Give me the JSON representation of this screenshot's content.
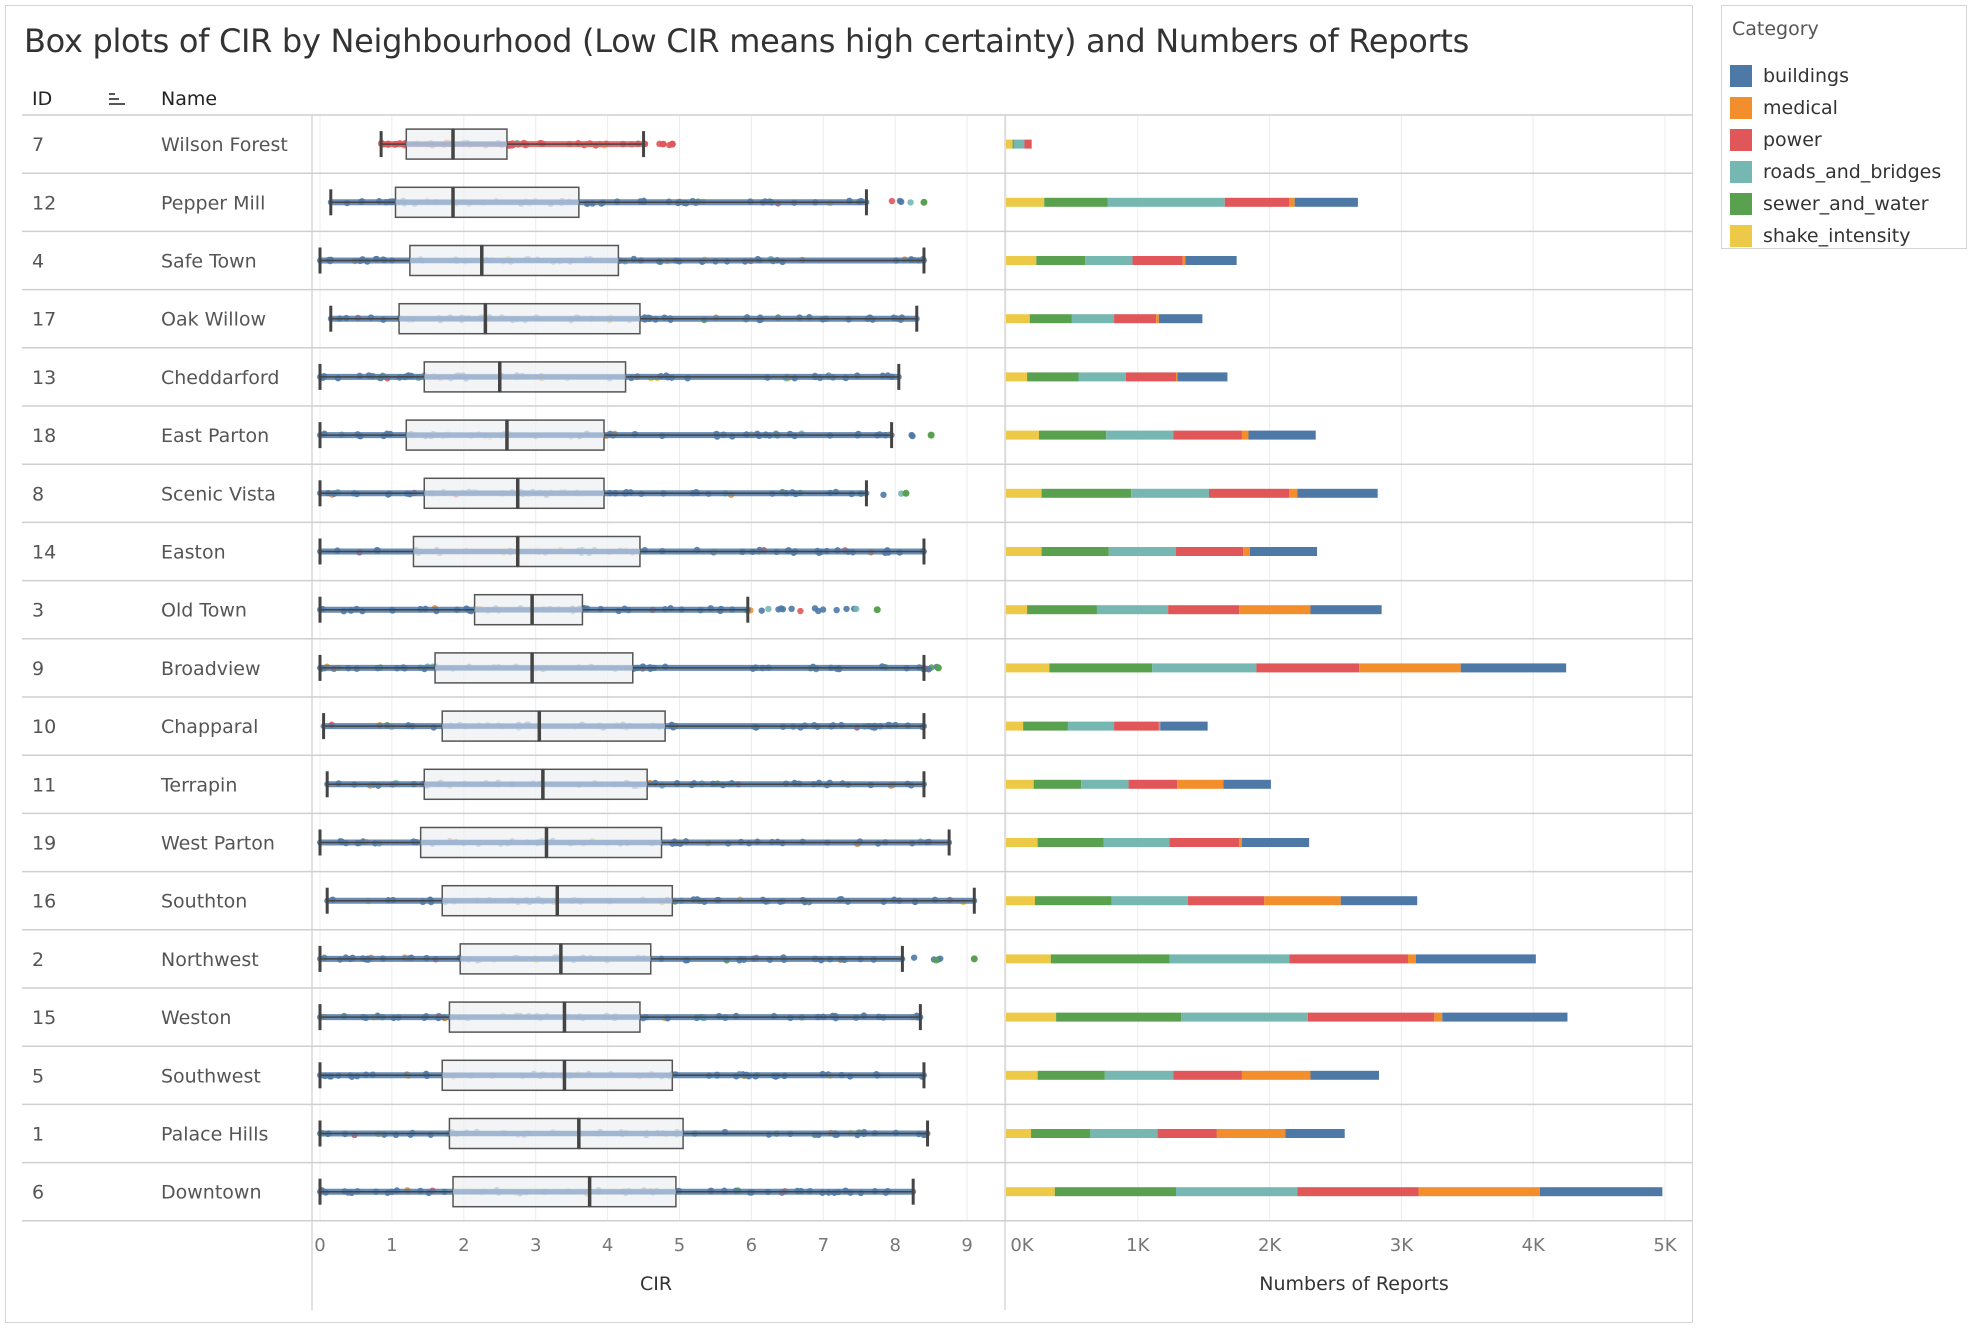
{
  "title": "Box plots of CIR by Neighbourhood (Low CIR means high certainty) and Numbers of Reports",
  "columns": {
    "id": "ID",
    "sort_icon": "sort-descending-icon",
    "name": "Name"
  },
  "legend": {
    "title": "Category",
    "items": [
      {
        "label": "buildings",
        "color": "#4e79a7"
      },
      {
        "label": "medical",
        "color": "#f28e2b"
      },
      {
        "label": "power",
        "color": "#e15759"
      },
      {
        "label": "roads_and_bridges",
        "color": "#76b7b2"
      },
      {
        "label": "sewer_and_water",
        "color": "#59a14f"
      },
      {
        "label": "shake_intensity",
        "color": "#edc948"
      }
    ]
  },
  "chart_data": [
    {
      "type": "box",
      "xlabel": "CIR",
      "xlim": [
        0,
        9.5
      ],
      "xticks": [
        "0",
        "1",
        "2",
        "3",
        "4",
        "5",
        "6",
        "7",
        "8",
        "9"
      ],
      "rows": [
        {
          "id": "7",
          "name": "Wilson Forest",
          "whisker_low": 0.85,
          "q1": 1.2,
          "median": 1.85,
          "q3": 2.6,
          "whisker_high": 4.5,
          "outlier_max": 4.9,
          "dominant": "power"
        },
        {
          "id": "12",
          "name": "Pepper Mill",
          "whisker_low": 0.15,
          "q1": 1.05,
          "median": 1.85,
          "q3": 3.6,
          "whisker_high": 7.6,
          "outlier_max": 8.4,
          "dominant": "buildings"
        },
        {
          "id": "4",
          "name": "Safe Town",
          "whisker_low": 0.0,
          "q1": 1.25,
          "median": 2.25,
          "q3": 4.15,
          "whisker_high": 8.4,
          "outlier_max": 8.4,
          "dominant": "buildings"
        },
        {
          "id": "17",
          "name": "Oak Willow",
          "whisker_low": 0.15,
          "q1": 1.1,
          "median": 2.3,
          "q3": 4.45,
          "whisker_high": 8.3,
          "outlier_max": 8.3,
          "dominant": "buildings"
        },
        {
          "id": "13",
          "name": "Cheddarford",
          "whisker_low": 0.0,
          "q1": 1.45,
          "median": 2.5,
          "q3": 4.25,
          "whisker_high": 8.05,
          "outlier_max": 8.05,
          "dominant": "buildings"
        },
        {
          "id": "18",
          "name": "East Parton",
          "whisker_low": 0.0,
          "q1": 1.2,
          "median": 2.6,
          "q3": 3.95,
          "whisker_high": 7.95,
          "outlier_max": 8.5,
          "dominant": "buildings"
        },
        {
          "id": "8",
          "name": "Scenic Vista",
          "whisker_low": 0.0,
          "q1": 1.45,
          "median": 2.75,
          "q3": 3.95,
          "whisker_high": 7.6,
          "outlier_max": 8.15,
          "dominant": "buildings"
        },
        {
          "id": "14",
          "name": "Easton",
          "whisker_low": 0.0,
          "q1": 1.3,
          "median": 2.75,
          "q3": 4.45,
          "whisker_high": 8.4,
          "outlier_max": 8.4,
          "dominant": "buildings"
        },
        {
          "id": "3",
          "name": "Old Town",
          "whisker_low": 0.0,
          "q1": 2.15,
          "median": 2.95,
          "q3": 3.65,
          "whisker_high": 5.95,
          "outlier_max": 7.75,
          "dominant": "buildings"
        },
        {
          "id": "9",
          "name": "Broadview",
          "whisker_low": 0.0,
          "q1": 1.6,
          "median": 2.95,
          "q3": 4.35,
          "whisker_high": 8.4,
          "outlier_max": 8.6,
          "dominant": "buildings"
        },
        {
          "id": "10",
          "name": "Chapparal",
          "whisker_low": 0.05,
          "q1": 1.7,
          "median": 3.05,
          "q3": 4.8,
          "whisker_high": 8.4,
          "outlier_max": 8.4,
          "dominant": "buildings"
        },
        {
          "id": "11",
          "name": "Terrapin",
          "whisker_low": 0.1,
          "q1": 1.45,
          "median": 3.1,
          "q3": 4.55,
          "whisker_high": 8.4,
          "outlier_max": 8.4,
          "dominant": "buildings"
        },
        {
          "id": "19",
          "name": "West Parton",
          "whisker_low": 0.0,
          "q1": 1.4,
          "median": 3.15,
          "q3": 4.75,
          "whisker_high": 8.75,
          "outlier_max": 8.75,
          "dominant": "buildings"
        },
        {
          "id": "16",
          "name": "Southton",
          "whisker_low": 0.1,
          "q1": 1.7,
          "median": 3.3,
          "q3": 4.9,
          "whisker_high": 9.1,
          "outlier_max": 9.1,
          "dominant": "buildings"
        },
        {
          "id": "2",
          "name": "Northwest",
          "whisker_low": 0.0,
          "q1": 1.95,
          "median": 3.35,
          "q3": 4.6,
          "whisker_high": 8.1,
          "outlier_max": 9.1,
          "dominant": "buildings"
        },
        {
          "id": "15",
          "name": "Weston",
          "whisker_low": 0.0,
          "q1": 1.8,
          "median": 3.4,
          "q3": 4.45,
          "whisker_high": 8.35,
          "outlier_max": 8.35,
          "dominant": "buildings"
        },
        {
          "id": "5",
          "name": "Southwest",
          "whisker_low": 0.0,
          "q1": 1.7,
          "median": 3.4,
          "q3": 4.9,
          "whisker_high": 8.4,
          "outlier_max": 8.4,
          "dominant": "buildings"
        },
        {
          "id": "1",
          "name": "Palace Hills",
          "whisker_low": 0.0,
          "q1": 1.8,
          "median": 3.6,
          "q3": 5.05,
          "whisker_high": 8.45,
          "outlier_max": 8.45,
          "dominant": "buildings"
        },
        {
          "id": "6",
          "name": "Downtown",
          "whisker_low": 0.0,
          "q1": 1.85,
          "median": 3.75,
          "q3": 4.95,
          "whisker_high": 8.25,
          "outlier_max": 8.25,
          "dominant": "buildings"
        }
      ]
    },
    {
      "type": "bar",
      "stacked": true,
      "orientation": "horizontal",
      "xlabel": "Numbers of Reports",
      "xlim": [
        0,
        5000
      ],
      "xticks": [
        "0K",
        "1K",
        "2K",
        "3K",
        "4K",
        "5K"
      ],
      "stack_order": [
        "shake_intensity",
        "sewer_and_water",
        "roads_and_bridges",
        "power",
        "medical",
        "buildings"
      ],
      "rows": [
        {
          "name": "Wilson Forest",
          "values": {
            "shake_intensity": 50,
            "sewer_and_water": 10,
            "roads_and_bridges": 80,
            "power": 55,
            "medical": 0,
            "buildings": 0
          }
        },
        {
          "name": "Pepper Mill",
          "values": {
            "shake_intensity": 290,
            "sewer_and_water": 480,
            "roads_and_bridges": 890,
            "power": 490,
            "medical": 40,
            "buildings": 480
          }
        },
        {
          "name": "Safe Town",
          "values": {
            "shake_intensity": 230,
            "sewer_and_water": 370,
            "roads_and_bridges": 360,
            "power": 380,
            "medical": 20,
            "buildings": 390
          }
        },
        {
          "name": "Oak Willow",
          "values": {
            "shake_intensity": 180,
            "sewer_and_water": 320,
            "roads_and_bridges": 320,
            "power": 320,
            "medical": 20,
            "buildings": 330
          }
        },
        {
          "name": "Cheddarford",
          "values": {
            "shake_intensity": 160,
            "sewer_and_water": 390,
            "roads_and_bridges": 360,
            "power": 380,
            "medical": 10,
            "buildings": 380
          }
        },
        {
          "name": "East Parton",
          "values": {
            "shake_intensity": 250,
            "sewer_and_water": 510,
            "roads_and_bridges": 510,
            "power": 520,
            "medical": 50,
            "buildings": 510
          }
        },
        {
          "name": "Scenic Vista",
          "values": {
            "shake_intensity": 270,
            "sewer_and_water": 680,
            "roads_and_bridges": 590,
            "power": 610,
            "medical": 60,
            "buildings": 610
          }
        },
        {
          "name": "Easton",
          "values": {
            "shake_intensity": 270,
            "sewer_and_water": 510,
            "roads_and_bridges": 510,
            "power": 510,
            "medical": 50,
            "buildings": 510
          }
        },
        {
          "name": "Old Town",
          "values": {
            "shake_intensity": 160,
            "sewer_and_water": 530,
            "roads_and_bridges": 540,
            "power": 540,
            "medical": 540,
            "buildings": 540
          }
        },
        {
          "name": "Broadview",
          "values": {
            "shake_intensity": 330,
            "sewer_and_water": 780,
            "roads_and_bridges": 790,
            "power": 780,
            "medical": 770,
            "buildings": 800
          }
        },
        {
          "name": "Chapparal",
          "values": {
            "shake_intensity": 130,
            "sewer_and_water": 340,
            "roads_and_bridges": 350,
            "power": 340,
            "medical": 10,
            "buildings": 360
          }
        },
        {
          "name": "Terrapin",
          "values": {
            "shake_intensity": 210,
            "sewer_and_water": 360,
            "roads_and_bridges": 360,
            "power": 370,
            "medical": 350,
            "buildings": 360
          }
        },
        {
          "name": "West Parton",
          "values": {
            "shake_intensity": 240,
            "sewer_and_water": 500,
            "roads_and_bridges": 500,
            "power": 530,
            "medical": 20,
            "buildings": 510
          }
        },
        {
          "name": "Southton",
          "values": {
            "shake_intensity": 220,
            "sewer_and_water": 580,
            "roads_and_bridges": 580,
            "power": 580,
            "medical": 580,
            "buildings": 580
          }
        },
        {
          "name": "Northwest",
          "values": {
            "shake_intensity": 340,
            "sewer_and_water": 900,
            "roads_and_bridges": 910,
            "power": 900,
            "medical": 60,
            "buildings": 910
          }
        },
        {
          "name": "Weston",
          "values": {
            "shake_intensity": 380,
            "sewer_and_water": 950,
            "roads_and_bridges": 960,
            "power": 960,
            "medical": 60,
            "buildings": 950
          }
        },
        {
          "name": "Southwest",
          "values": {
            "shake_intensity": 240,
            "sewer_and_water": 510,
            "roads_and_bridges": 520,
            "power": 520,
            "medical": 520,
            "buildings": 520
          }
        },
        {
          "name": "Palace Hills",
          "values": {
            "shake_intensity": 190,
            "sewer_and_water": 450,
            "roads_and_bridges": 510,
            "power": 450,
            "medical": 520,
            "buildings": 450
          }
        },
        {
          "name": "Downtown",
          "values": {
            "shake_intensity": 370,
            "sewer_and_water": 920,
            "roads_and_bridges": 920,
            "power": 920,
            "medical": 920,
            "buildings": 930
          }
        }
      ]
    }
  ]
}
